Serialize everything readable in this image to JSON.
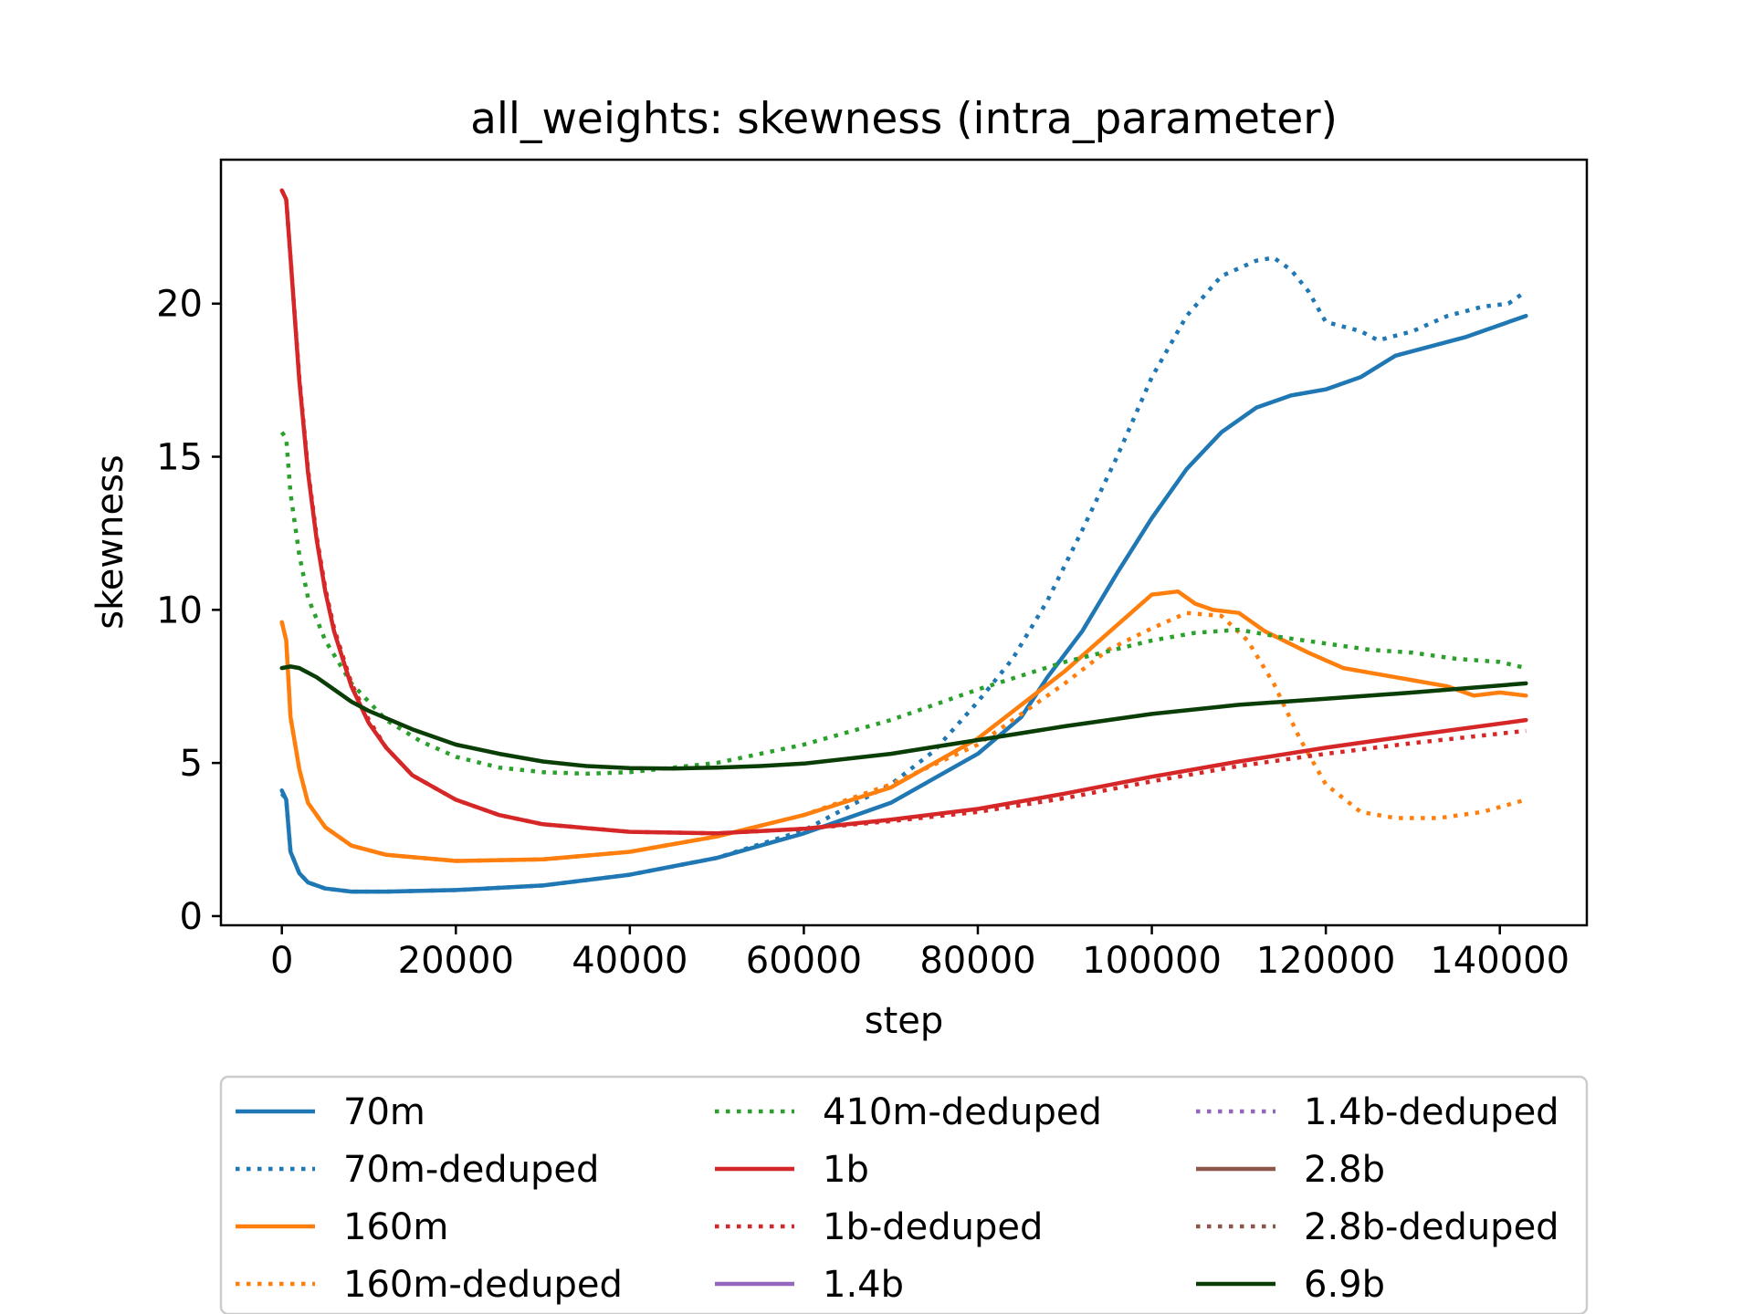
{
  "chart_data": {
    "type": "line",
    "title": "all_weights: skewness (intra_parameter)",
    "xlabel": "step",
    "ylabel": "skewness",
    "xlim": [
      -7000,
      150000
    ],
    "ylim": [
      -0.3,
      24.7
    ],
    "xticks": [
      0,
      20000,
      40000,
      60000,
      80000,
      100000,
      120000,
      140000
    ],
    "yticks": [
      0,
      5,
      10,
      15,
      20
    ],
    "grid": false,
    "legend_placement": "below",
    "series": [
      {
        "name": "70m",
        "color": "#1f77b4",
        "style": "solid",
        "x": [
          0,
          500,
          1000,
          2000,
          3000,
          5000,
          8000,
          12000,
          20000,
          30000,
          40000,
          50000,
          60000,
          70000,
          80000,
          85000,
          88000,
          92000,
          96000,
          100000,
          104000,
          108000,
          112000,
          116000,
          120000,
          124000,
          128000,
          132000,
          136000,
          140000,
          143000
        ],
        "y": [
          4.1,
          3.8,
          2.1,
          1.4,
          1.1,
          0.9,
          0.8,
          0.8,
          0.85,
          1.0,
          1.35,
          1.9,
          2.7,
          3.7,
          5.3,
          6.5,
          7.8,
          9.3,
          11.2,
          13.0,
          14.6,
          15.8,
          16.6,
          17.0,
          17.2,
          17.6,
          18.3,
          18.6,
          18.9,
          19.3,
          19.6
        ]
      },
      {
        "name": "70m-deduped",
        "color": "#1f77b4",
        "style": "dotted",
        "x": [
          0,
          500,
          1000,
          2000,
          3000,
          5000,
          8000,
          12000,
          20000,
          30000,
          40000,
          50000,
          60000,
          70000,
          75000,
          80000,
          84000,
          88000,
          92000,
          96000,
          100000,
          104000,
          108000,
          112000,
          114000,
          116000,
          118000,
          120000,
          124000,
          126000,
          130000,
          134000,
          138000,
          141000,
          143000
        ],
        "y": [
          4.0,
          3.8,
          2.1,
          1.4,
          1.1,
          0.9,
          0.8,
          0.8,
          0.85,
          1.0,
          1.35,
          1.9,
          2.8,
          4.3,
          5.4,
          7.0,
          8.4,
          10.3,
          12.6,
          15.0,
          17.6,
          19.6,
          20.9,
          21.4,
          21.5,
          21.1,
          20.4,
          19.4,
          19.1,
          18.8,
          19.1,
          19.6,
          19.9,
          20.0,
          20.4
        ]
      },
      {
        "name": "160m",
        "color": "#ff7f0e",
        "style": "solid",
        "x": [
          0,
          500,
          1000,
          2000,
          3000,
          5000,
          8000,
          12000,
          20000,
          30000,
          40000,
          50000,
          60000,
          70000,
          80000,
          90000,
          96000,
          100000,
          103000,
          105000,
          107000,
          110000,
          113000,
          118000,
          122000,
          126000,
          130000,
          134000,
          137000,
          140000,
          143000
        ],
        "y": [
          9.6,
          9.0,
          6.5,
          4.8,
          3.7,
          2.9,
          2.3,
          2.0,
          1.8,
          1.85,
          2.1,
          2.6,
          3.3,
          4.2,
          5.8,
          8.0,
          9.5,
          10.5,
          10.6,
          10.2,
          10.0,
          9.9,
          9.3,
          8.6,
          8.1,
          7.9,
          7.7,
          7.5,
          7.2,
          7.3,
          7.2
        ]
      },
      {
        "name": "160m-deduped",
        "color": "#ff7f0e",
        "style": "dotted",
        "x": [
          0,
          500,
          1000,
          2000,
          3000,
          5000,
          8000,
          12000,
          20000,
          30000,
          40000,
          50000,
          60000,
          70000,
          80000,
          90000,
          95000,
          100000,
          104000,
          108000,
          111000,
          114000,
          117000,
          120000,
          124000,
          128000,
          133000,
          138000,
          143000
        ],
        "y": [
          9.6,
          9.0,
          6.5,
          4.8,
          3.7,
          2.9,
          2.3,
          2.0,
          1.8,
          1.85,
          2.1,
          2.6,
          3.3,
          4.3,
          5.6,
          7.6,
          8.7,
          9.4,
          9.9,
          9.8,
          9.0,
          7.6,
          5.8,
          4.3,
          3.4,
          3.2,
          3.2,
          3.4,
          3.8
        ]
      },
      {
        "name": "410m-deduped",
        "color": "#2ca02c",
        "style": "dotted",
        "x": [
          0,
          500,
          1000,
          2000,
          3000,
          5000,
          8000,
          12000,
          16000,
          20000,
          25000,
          30000,
          35000,
          40000,
          50000,
          60000,
          70000,
          80000,
          90000,
          100000,
          105000,
          110000,
          115000,
          120000,
          125000,
          130000,
          135000,
          140000,
          143000
        ],
        "y": [
          15.8,
          15.6,
          13.8,
          11.8,
          10.4,
          9.0,
          7.6,
          6.4,
          5.7,
          5.2,
          4.85,
          4.7,
          4.65,
          4.7,
          5.0,
          5.6,
          6.4,
          7.4,
          8.3,
          9.0,
          9.25,
          9.35,
          9.1,
          8.9,
          8.7,
          8.6,
          8.4,
          8.3,
          8.1
        ]
      },
      {
        "name": "1b",
        "color": "#d62728",
        "style": "solid",
        "x": [
          0,
          500,
          1000,
          2000,
          3000,
          4000,
          5000,
          6000,
          8000,
          10000,
          12000,
          15000,
          20000,
          25000,
          30000,
          40000,
          50000,
          60000,
          70000,
          80000,
          90000,
          100000,
          110000,
          120000,
          130000,
          143000
        ],
        "y": [
          23.7,
          23.4,
          21.5,
          17.5,
          14.5,
          12.3,
          10.6,
          9.3,
          7.5,
          6.3,
          5.5,
          4.6,
          3.8,
          3.3,
          3.0,
          2.75,
          2.7,
          2.85,
          3.15,
          3.5,
          4.0,
          4.55,
          5.05,
          5.5,
          5.9,
          6.4
        ]
      },
      {
        "name": "1b-deduped",
        "color": "#d62728",
        "style": "dotted",
        "x": [
          0,
          500,
          1000,
          2000,
          3000,
          4000,
          5000,
          6000,
          8000,
          10000,
          12000,
          15000,
          20000,
          25000,
          30000,
          40000,
          50000,
          60000,
          70000,
          80000,
          90000,
          100000,
          110000,
          120000,
          130000,
          143000
        ],
        "y": [
          23.7,
          23.4,
          21.5,
          17.6,
          14.6,
          12.4,
          10.7,
          9.4,
          7.6,
          6.4,
          5.5,
          4.6,
          3.8,
          3.3,
          3.0,
          2.75,
          2.7,
          2.85,
          3.1,
          3.4,
          3.85,
          4.4,
          4.9,
          5.3,
          5.65,
          6.05
        ]
      },
      {
        "name": "1.4b",
        "color": "#9467bd",
        "style": "solid",
        "x": [],
        "y": []
      },
      {
        "name": "1.4b-deduped",
        "color": "#9467bd",
        "style": "dotted",
        "x": [],
        "y": []
      },
      {
        "name": "2.8b",
        "color": "#8c564b",
        "style": "solid",
        "x": [],
        "y": []
      },
      {
        "name": "2.8b-deduped",
        "color": "#8c564b",
        "style": "dotted",
        "x": [],
        "y": []
      },
      {
        "name": "6.9b",
        "color": "#0b3d06",
        "style": "solid",
        "x": [
          0,
          1000,
          2000,
          4000,
          6000,
          8000,
          10000,
          15000,
          20000,
          25000,
          30000,
          35000,
          40000,
          45000,
          50000,
          55000,
          60000,
          70000,
          80000,
          90000,
          100000,
          110000,
          120000,
          130000,
          143000
        ],
        "y": [
          8.1,
          8.15,
          8.1,
          7.8,
          7.4,
          7.0,
          6.7,
          6.1,
          5.6,
          5.3,
          5.05,
          4.9,
          4.83,
          4.82,
          4.85,
          4.9,
          4.98,
          5.3,
          5.75,
          6.2,
          6.6,
          6.9,
          7.1,
          7.3,
          7.6
        ]
      }
    ],
    "legend_order": [
      "70m",
      "70m-deduped",
      "160m",
      "160m-deduped",
      "410m-deduped",
      "1b",
      "1b-deduped",
      "1.4b",
      "1.4b-deduped",
      "2.8b",
      "2.8b-deduped",
      "6.9b"
    ]
  }
}
